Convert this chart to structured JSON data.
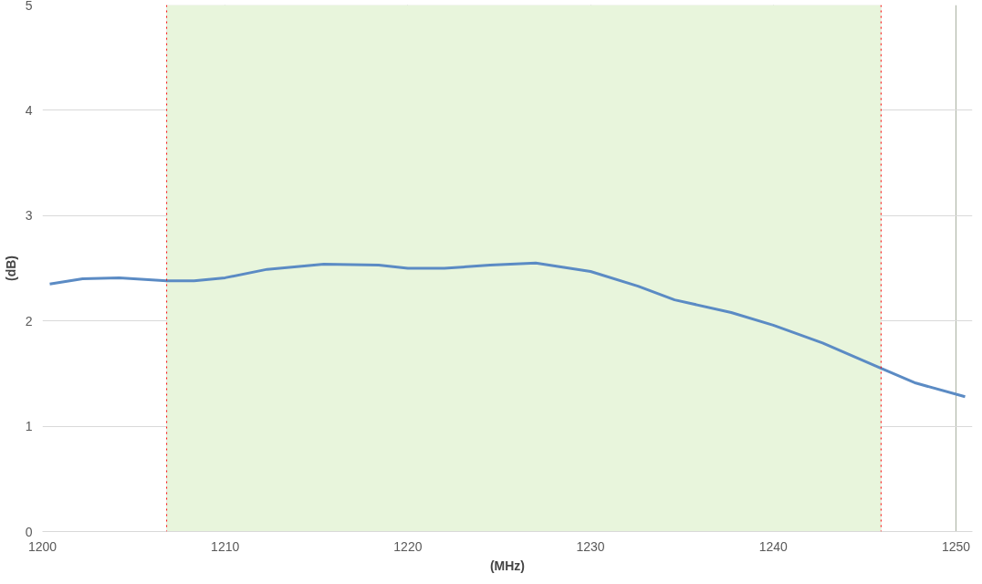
{
  "chart_data": {
    "type": "line",
    "xlabel": "(MHz)",
    "ylabel": "(dB)",
    "x": [
      1200.4,
      1202.2,
      1204.2,
      1206.8,
      1208.3,
      1210,
      1212.3,
      1215.4,
      1218.4,
      1220,
      1222,
      1224.5,
      1227,
      1230,
      1232.6,
      1234.6,
      1237.7,
      1240,
      1242.7,
      1245.9,
      1247.8,
      1250.5
    ],
    "series": [
      {
        "color": "#5b8bc4",
        "values": [
          2.35,
          2.4,
          2.41,
          2.38,
          2.38,
          2.41,
          2.49,
          2.54,
          2.53,
          2.5,
          2.5,
          2.53,
          2.55,
          2.47,
          2.33,
          2.2,
          2.08,
          1.96,
          1.79,
          1.55,
          1.41,
          1.28
        ]
      }
    ],
    "xlim": [
      1200,
      1250.9
    ],
    "xticks": [
      1200,
      1210,
      1220,
      1230,
      1240,
      1250
    ],
    "ylim": [
      0,
      5
    ],
    "yticks": [
      0,
      1,
      2,
      3,
      4,
      5
    ],
    "grid": true,
    "marker": "none",
    "line_style": "solid",
    "bands": [
      {
        "axis": "x",
        "from": 1206.8,
        "to": 1245.9,
        "color": "#e8f5dc"
      }
    ],
    "ref_lines": [
      {
        "axis": "x",
        "value": 1206.8,
        "color": "#ff0000",
        "line_style": "dotted"
      },
      {
        "axis": "x",
        "value": 1245.9,
        "color": "#ff0000",
        "line_style": "dotted"
      }
    ]
  }
}
